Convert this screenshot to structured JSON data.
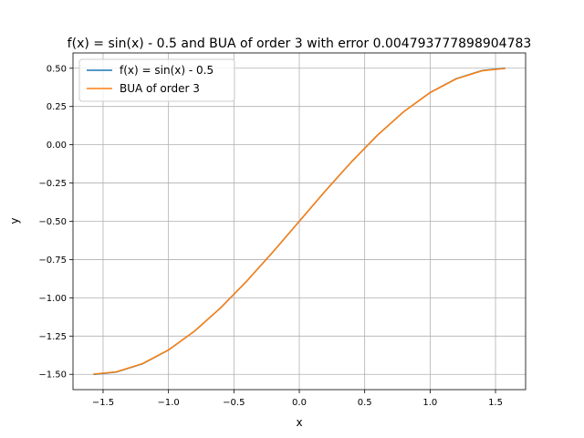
{
  "chart_data": {
    "type": "line",
    "title": "f(x) = sin(x) - 0.5 and BUA of order 3 with error 0.004793777898904783",
    "xlabel": "x",
    "ylabel": "y",
    "xlim": [
      -1.73,
      1.73
    ],
    "ylim": [
      -1.6,
      0.6
    ],
    "x_ticks": [
      -1.5,
      -1.0,
      -0.5,
      0.0,
      0.5,
      1.0,
      1.5
    ],
    "x_tick_labels": [
      "−1.5",
      "−1.0",
      "−0.5",
      "0.0",
      "0.5",
      "1.0",
      "1.5"
    ],
    "y_ticks": [
      0.5,
      0.25,
      0.0,
      -0.25,
      -0.5,
      -0.75,
      -1.0,
      -1.25,
      -1.5
    ],
    "y_tick_labels": [
      "0.50",
      "0.25",
      "0.00",
      "−0.25",
      "−0.50",
      "−0.75",
      "−1.00",
      "−1.25",
      "−1.50"
    ],
    "grid": true,
    "legend_position": "top-left",
    "series": [
      {
        "name": "f(x) = sin(x) - 0.5",
        "color": "#1f77b4",
        "x": [
          -1.5708,
          -1.4,
          -1.2,
          -1.0,
          -0.8,
          -0.6,
          -0.4,
          -0.2,
          0.0,
          0.2,
          0.4,
          0.6,
          0.8,
          1.0,
          1.2,
          1.4,
          1.5708
        ],
        "y": [
          -1.5,
          -1.4854,
          -1.432,
          -1.3415,
          -1.2174,
          -1.0646,
          -0.8894,
          -0.6987,
          -0.5,
          -0.3013,
          -0.1106,
          0.0646,
          0.2174,
          0.3415,
          0.432,
          0.4854,
          0.5
        ]
      },
      {
        "name": "BUA of order 3",
        "color": "#ff7f0e",
        "x": [
          -1.5708,
          -1.4,
          -1.2,
          -1.0,
          -0.8,
          -0.6,
          -0.4,
          -0.2,
          0.0,
          0.2,
          0.4,
          0.6,
          0.8,
          1.0,
          1.2,
          1.4,
          1.5708
        ],
        "y": [
          -1.4983,
          -1.4837,
          -1.4305,
          -1.3405,
          -1.2168,
          -1.0643,
          -0.8893,
          -0.6987,
          -0.5,
          -0.3013,
          -0.1107,
          0.0643,
          0.2168,
          0.3405,
          0.4305,
          0.4837,
          0.4983
        ]
      }
    ]
  }
}
